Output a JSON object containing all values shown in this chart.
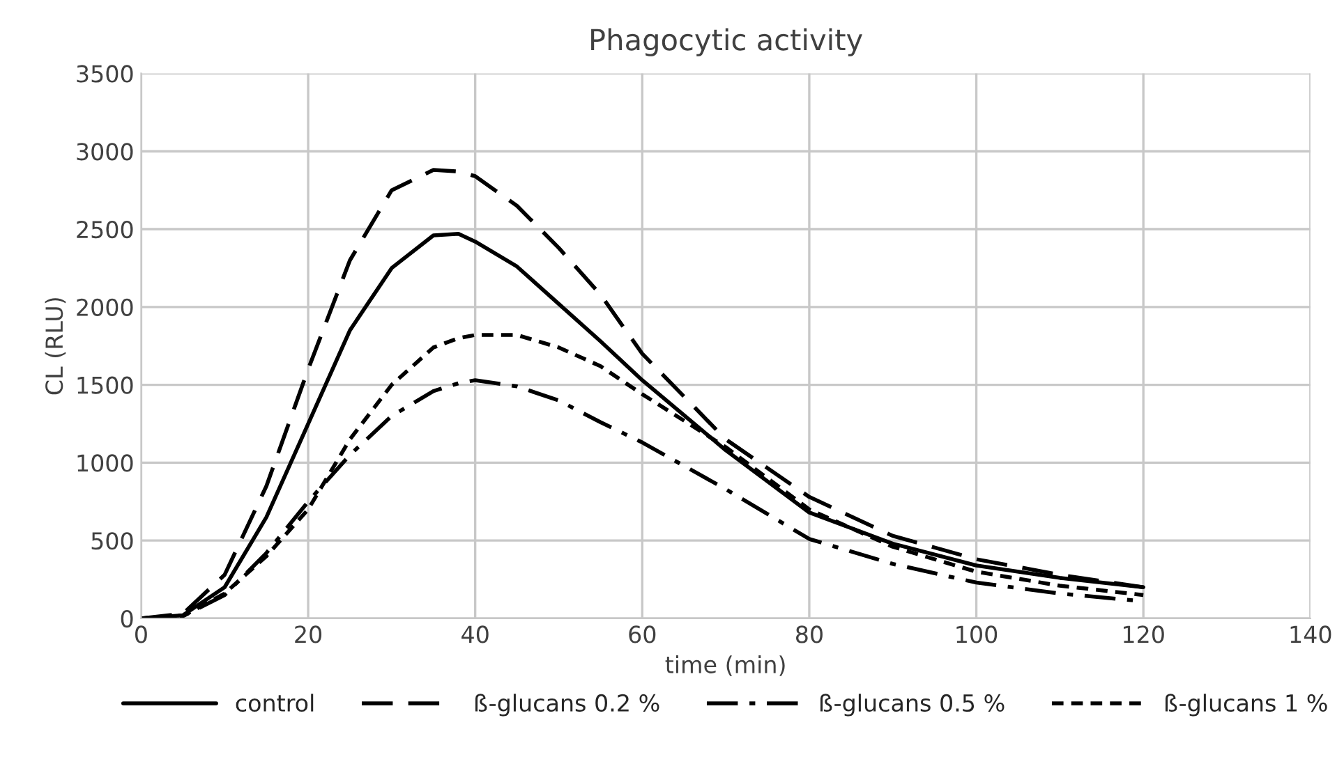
{
  "chart_data": {
    "type": "line",
    "title": "Phagocytic activity",
    "xlabel": "time (min)",
    "ylabel": "CL (RLU)",
    "x": [
      0,
      5,
      10,
      15,
      20,
      25,
      30,
      35,
      38,
      40,
      45,
      50,
      55,
      60,
      70,
      80,
      90,
      100,
      110,
      120
    ],
    "series": [
      {
        "name": "control",
        "color": "#000000",
        "line_style": "solid",
        "values": [
          0,
          20,
          200,
          650,
          1250,
          1850,
          2250,
          2460,
          2470,
          2420,
          2260,
          2020,
          1780,
          1530,
          1080,
          680,
          480,
          340,
          260,
          200
        ]
      },
      {
        "name": "ß-glucans 0.2 %",
        "color": "#000000",
        "line_style": "dashed",
        "values": [
          0,
          30,
          280,
          850,
          1600,
          2300,
          2750,
          2880,
          2870,
          2840,
          2650,
          2380,
          2080,
          1700,
          1150,
          780,
          530,
          380,
          280,
          200
        ]
      },
      {
        "name": "ß-glucans 0.5 %",
        "color": "#000000",
        "line_style": "dashdot",
        "values": [
          0,
          15,
          150,
          420,
          750,
          1050,
          1300,
          1460,
          1510,
          1530,
          1490,
          1400,
          1260,
          1130,
          830,
          510,
          350,
          230,
          160,
          110
        ]
      },
      {
        "name": "ß-glucans 1 %",
        "color": "#000000",
        "line_style": "dotted",
        "values": [
          0,
          15,
          160,
          400,
          700,
          1150,
          1500,
          1740,
          1800,
          1820,
          1820,
          1740,
          1620,
          1440,
          1100,
          700,
          460,
          300,
          210,
          150
        ]
      }
    ],
    "xlim": [
      0,
      140
    ],
    "xticks": [
      0,
      20,
      40,
      60,
      80,
      100,
      120,
      140
    ],
    "ylim": [
      0,
      3500
    ],
    "yticks": [
      0,
      500,
      1000,
      1500,
      2000,
      2500,
      3000,
      3500
    ],
    "grid": true,
    "legend": "bottom",
    "marker": "none"
  }
}
